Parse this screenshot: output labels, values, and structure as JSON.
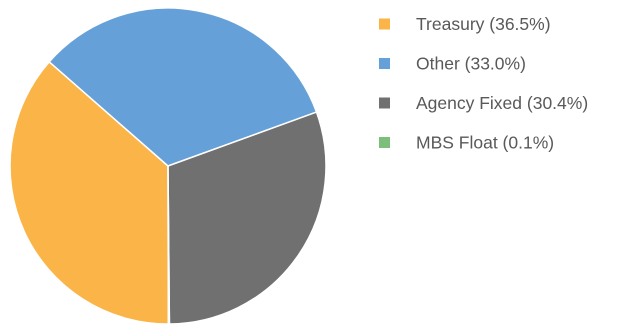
{
  "chart_data": {
    "type": "pie",
    "title": "",
    "legend_position": "right",
    "start_angle_deg": 89.85,
    "direction": "clockwise",
    "slices": [
      {
        "label": "Treasury (36.5%)",
        "value": 36.5,
        "color": "#FAB447"
      },
      {
        "label": "Other (33.0%)",
        "value": 33.0,
        "color": "#65A1D8"
      },
      {
        "label": "Agency Fixed (30.4%)",
        "value": 30.4,
        "color": "#707070"
      },
      {
        "label": "MBS Float (0.1%)",
        "value": 0.1,
        "color": "#7DBE7A"
      }
    ]
  }
}
